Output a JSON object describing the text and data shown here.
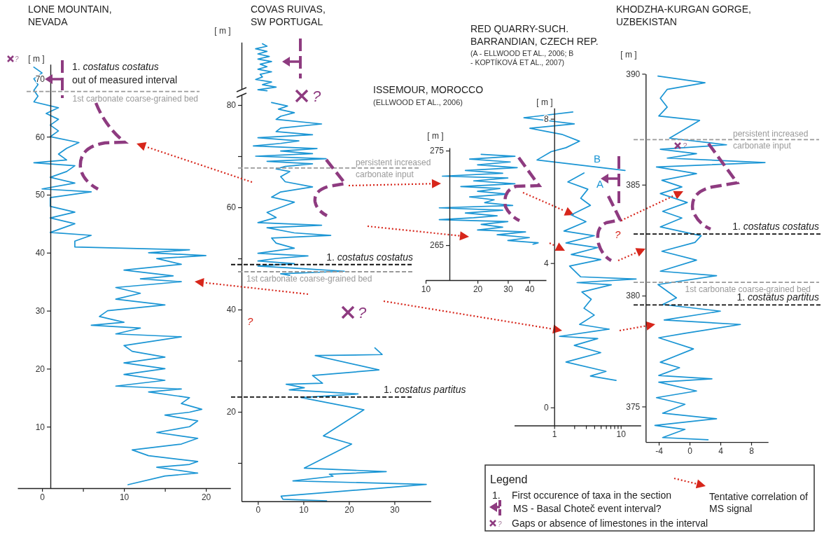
{
  "chart_data": [
    {
      "type": "line",
      "title": "LONE MOUNTAIN, NEVADA",
      "ylabel": "[ m ]",
      "xlim": [
        -3,
        23
      ],
      "ylim": [
        -0.6,
        72.5
      ],
      "xticks": [
        0,
        {
          "value": 5,
          "label": null
        },
        10,
        {
          "value": 15,
          "label": null
        },
        20
      ],
      "yticks": [
        10,
        20,
        30,
        40,
        50,
        60,
        70
      ],
      "series": [
        {
          "color": "#1a95d4",
          "x": [
            10.5,
            15,
            19,
            14,
            18,
            19,
            13,
            11,
            17,
            19,
            14,
            18,
            19,
            15,
            18,
            19.5,
            17,
            18,
            13,
            17,
            9,
            15,
            10,
            15,
            10,
            15,
            11,
            10,
            17,
            9,
            12,
            6,
            10,
            7,
            8,
            15,
            9,
            12,
            9,
            17,
            12,
            16,
            10,
            17,
            14,
            20,
            13,
            18,
            4,
            4,
            6,
            1,
            4,
            1,
            4,
            1,
            1,
            6,
            0,
            4,
            1,
            3,
            4,
            -1,
            3,
            2,
            3,
            4.5,
            1,
            2,
            1,
            2,
            0.5,
            2,
            -1,
            -0.5,
            -1,
            -0.5,
            -1,
            0,
            -1
          ],
          "values": [
            0,
            1.5,
            2,
            3,
            3.5,
            4,
            5,
            6,
            7,
            8,
            9,
            10,
            11,
            12,
            12.5,
            13,
            14,
            15,
            16,
            16.5,
            17,
            18,
            19,
            20,
            21,
            22,
            23,
            24,
            25.5,
            26,
            27,
            27.5,
            28,
            29,
            30,
            31,
            32,
            33,
            34,
            35,
            35.5,
            36,
            37,
            38,
            39,
            39.5,
            40,
            40.5,
            41,
            42,
            43,
            43.5,
            45,
            46,
            47,
            48,
            49.5,
            50.5,
            51,
            52,
            53,
            54,
            55,
            55.5,
            56,
            57,
            58,
            59,
            60,
            61,
            62,
            63,
            64,
            65,
            66,
            67,
            68,
            69,
            70,
            71,
            72
          ]
        }
      ],
      "ref_lines": [
        {
          "axis": "y",
          "value": 67.8,
          "label": "1st carbonate coarse-grained bed",
          "color": "#9a9a9a",
          "line_style": "dashed"
        }
      ],
      "annotations": [
        "1. costatus costatus",
        "out of measured interval",
        "?"
      ]
    },
    {
      "type": "line",
      "title": "COVAS RUIVAS, SW PORTUGAL",
      "ylabel": "[ m ]",
      "xlim": [
        -3.6,
        38
      ],
      "ylim": [
        2.5,
        92.3
      ],
      "xticks": [
        0,
        10,
        20,
        30
      ],
      "yticks": [
        {
          "value": 10,
          "label": null
        },
        20,
        {
          "value": 30,
          "label": null
        },
        40,
        {
          "value": 50,
          "label": null
        },
        60,
        {
          "value": 70,
          "label": null
        },
        80
      ],
      "series": [
        {
          "color": "#1a95d4",
          "x": [
            1,
            2,
            -0.5,
            2,
            0,
            2.5,
            0,
            3,
            0.5,
            2,
            0,
            3,
            0.5,
            1,
            -0.5,
            3,
            1,
            4,
            0,
            2,
            null,
            3,
            6.5,
            4.5,
            8,
            5,
            4,
            14,
            5,
            4,
            12,
            0,
            9,
            5,
            -1,
            13,
            5,
            12,
            -0.5,
            15,
            2,
            12,
            6,
            4,
            7,
            5,
            6,
            12,
            5,
            3,
            8,
            5,
            2,
            4,
            0,
            14,
            2,
            8,
            16,
            3,
            4,
            8,
            0,
            11,
            4,
            0,
            8,
            0,
            10,
            19,
            5,
            7,
            null,
            25.7,
            27.3,
            12.6,
            26.6,
            12,
            14.2,
            6.2,
            10.2,
            6.9,
            22,
            9.5,
            23.3,
            14.4,
            20.6,
            10.2,
            28.2,
            15.7,
            16.5,
            7.7,
            37,
            5.1,
            5.5,
            15.1
          ],
          "values": [
            92,
            91.5,
            91,
            90.5,
            90,
            89.5,
            89,
            88.5,
            88,
            87.5,
            87,
            86.5,
            86,
            85.5,
            85,
            84.5,
            84,
            83.5,
            83,
            82.8,
            null,
            80.5,
            79.8,
            79.2,
            78.5,
            77.8,
            77.2,
            76.3,
            75.5,
            74.8,
            74.2,
            73.6,
            73,
            72.5,
            72,
            71.5,
            71,
            70.5,
            70,
            69.5,
            69,
            68.5,
            68,
            67.5,
            67,
            66,
            65,
            64,
            63,
            62,
            61,
            60,
            59,
            58,
            57,
            56.5,
            56,
            55,
            54.5,
            54,
            53,
            52,
            51,
            50.5,
            50,
            49.5,
            49,
            48.5,
            48,
            47.5,
            47,
            46.7,
            null,
            32.5,
            31.2,
            31,
            28.2,
            27.1,
            25.6,
            25.4,
            24.7,
            24.3,
            23.5,
            22.8,
            20.4,
            15.3,
            13.7,
            9,
            8.3,
            7.8,
            7.4,
            6.5,
            5.8,
            3.5,
            2.9,
            2.6
          ]
        }
      ],
      "ref_lines": [
        {
          "axis": "y",
          "value": 48.8,
          "label": "1. costatus costatus",
          "color": "#111111",
          "line_style": "dashed"
        },
        {
          "axis": "y",
          "value": 47.4,
          "label": "1st carbonate coarse-grained bed",
          "color": "#9a9a9a",
          "line_style": "dashed"
        },
        {
          "axis": "y",
          "value": 67.7,
          "label": "persistent increased carbonate input",
          "color": "#9a9a9a",
          "line_style": "dashed"
        },
        {
          "axis": "y",
          "value": 22.9,
          "label": "1. costatus partitus",
          "color": "#111111",
          "line_style": "dashed"
        }
      ],
      "annotations": [
        "?",
        "?",
        "?"
      ]
    },
    {
      "type": "line",
      "title": "ISSEMOUR, MOROCCO",
      "subtitle": "(ELLWOOD ET AL., 2006)",
      "ylabel": "[ m ]",
      "log": "x",
      "xlim": [
        10,
        50
      ],
      "ylim": [
        261.3,
        275.3
      ],
      "xticks": [
        10,
        20,
        30,
        40
      ],
      "yticks": [
        265,
        275
      ],
      "series": [
        {
          "color": "#1a95d4",
          "x": [
            21,
            33,
            18,
            31,
            20,
            34,
            17,
            28,
            12.5,
            30,
            19,
            33,
            16,
            27,
            20,
            30,
            18,
            25,
            22,
            32,
            12,
            28,
            17,
            26,
            19,
            12,
            30,
            21,
            28,
            20,
            38,
            26,
            40,
            30,
            45,
            42
          ],
          "values": [
            274.6,
            274.4,
            274.1,
            273.8,
            273.5,
            273.2,
            272.9,
            272.6,
            272.3,
            272.1,
            271.8,
            271.5,
            271.2,
            271,
            270.7,
            270.4,
            270.1,
            269.8,
            269.5,
            269.2,
            268.95,
            268.7,
            268.4,
            268.1,
            267.9,
            267.7,
            267.5,
            267.2,
            266.9,
            266.6,
            266.4,
            266.1,
            265.8,
            265.5,
            265.25,
            265.1
          ]
        }
      ]
    },
    {
      "type": "line",
      "title": "RED QUARRY-SUCH. BARRANDIAN, CZECH REP.",
      "subtitle": "(A - ELLWOOD ET AL., 2006; B - KOPTÍKOVÁ ET AL., 2007)",
      "ylabel": "[ m ]",
      "log": "x",
      "xlim": [
        0.25,
        20
      ],
      "ylim": [
        -0.5,
        8.3
      ],
      "xticks": [
        1,
        {
          "value": 2,
          "label": null
        },
        {
          "value": 3,
          "label": null
        },
        {
          "value": 4,
          "label": null
        },
        {
          "value": 5,
          "label": null
        },
        {
          "value": 6,
          "label": null
        },
        {
          "value": 7,
          "label": null
        },
        {
          "value": 8,
          "label": null
        },
        {
          "value": 9,
          "label": null
        },
        10
      ],
      "yticks": [
        0,
        4,
        8
      ],
      "series": [
        {
          "name": "A",
          "color": "#1a95d4",
          "x": [
            8.5,
            3.5,
            6,
            1.5,
            5,
            2,
            4.5,
            1.2,
            6.7,
            2.4,
            4,
            2.8,
            3.6,
            2.6,
            7.2,
            2.2,
            17,
            2.5,
            1.7,
            5,
            1.8,
            4.5,
            1.5,
            4,
            1.4,
            3,
            1.8,
            3.5,
            2.5,
            3.2,
            1.6,
            2.8
          ],
          "values": [
            0.75,
            0.87,
            1.0,
            1.26,
            1.52,
            1.72,
            1.91,
            1.97,
            2.17,
            2.3,
            2.56,
            2.75,
            3.0,
            3.2,
            3.4,
            3.46,
            3.56,
            3.62,
            3.92,
            4.1,
            4.24,
            4.43,
            4.56,
            4.76,
            4.89,
            5.15,
            5.34,
            5.6,
            5.8,
            6.05,
            6.25,
            6.5
          ]
        },
        {
          "name": "B",
          "color": "#1a95d4",
          "x": [
            11.6,
            0.55,
            0.9,
            1.5,
            2.4,
            1.3,
            0.43,
            2,
            0.35,
            1.9
          ],
          "values": [
            6.57,
            6.86,
            7.09,
            7.2,
            7.38,
            7.57,
            7.74,
            7.86,
            8.03,
            8.19
          ]
        }
      ],
      "annotations": [
        "?"
      ]
    },
    {
      "type": "line",
      "title": "KHODZHA-KURGAN GORGE, UZBEKISTAN",
      "ylabel": "[ m ]",
      "xlim": [
        -5.7,
        10.2
      ],
      "ylim": [
        373.4,
        390
      ],
      "xticks": [
        -4,
        0,
        4,
        8
      ],
      "yticks": [
        375,
        380,
        385,
        390
      ],
      "series": [
        {
          "color": "#1a95d4",
          "x": [
            2.4,
            -3.5,
            -0.6,
            -4.5,
            3.5,
            -3.5,
            -0.6,
            -4.3,
            0.9,
            -4,
            2.9,
            -4,
            -1.3,
            -3.8,
            0.5,
            -4,
            -0.6,
            6.6,
            -3.3,
            4,
            -3.5,
            -1.7,
            -4.1,
            3.5,
            -3.8,
            0.9,
            -3.6,
            0.7,
            1.5,
            -3.8,
            -1,
            -3.5,
            -0.3,
            -3.8,
            -1,
            -3.6,
            0.9,
            -4.3,
            9.8,
            -2.9,
            0.9,
            -3.8,
            4.8,
            -2.6,
            1.3,
            -4,
            -2.9,
            -3.8,
            -2.9,
            2,
            -4.1
          ],
          "values": [
            373.5,
            373.6,
            373.97,
            374.15,
            374.45,
            374.7,
            375.1,
            375.4,
            375.7,
            376.1,
            376.25,
            376.4,
            376.75,
            377,
            377.6,
            378.1,
            378.3,
            378.7,
            378.9,
            379.3,
            379.6,
            379.9,
            380.5,
            380.9,
            381.1,
            381.6,
            382,
            382.4,
            382.7,
            383.1,
            383.5,
            383.8,
            384.2,
            384.6,
            384.9,
            385.2,
            385.5,
            385.8,
            386,
            386.2,
            386.4,
            386.6,
            386.8,
            387.1,
            387.9,
            388.1,
            388.5,
            388.9,
            389.3,
            389.6,
            389.9
          ]
        }
      ],
      "ref_lines": [
        {
          "axis": "y",
          "value": 387.03,
          "label": "persistent increased carbonate input",
          "color": "#9a9a9a",
          "line_style": "dashed"
        },
        {
          "axis": "y",
          "value": 382.78,
          "label": "1. costatus costatus",
          "color": "#111111",
          "line_style": "dashed"
        },
        {
          "axis": "y",
          "value": 380.6,
          "label": "1st carbonate coarse-grained bed",
          "color": "#9a9a9a",
          "line_style": "dashed"
        },
        {
          "axis": "y",
          "value": 379.58,
          "label": "1. costatus partitus",
          "color": "#111111",
          "line_style": "dashed"
        }
      ],
      "annotations": [
        "?"
      ]
    },
    {
      "type": "other",
      "title": "Legend",
      "annotations": [
        "1.",
        "First occurence of taxa in the section",
        "MS - Basal Choteč event interval?",
        "?",
        "Gaps or absence of limestones in the interval",
        "Tentative correlation of MS signal"
      ]
    }
  ]
}
